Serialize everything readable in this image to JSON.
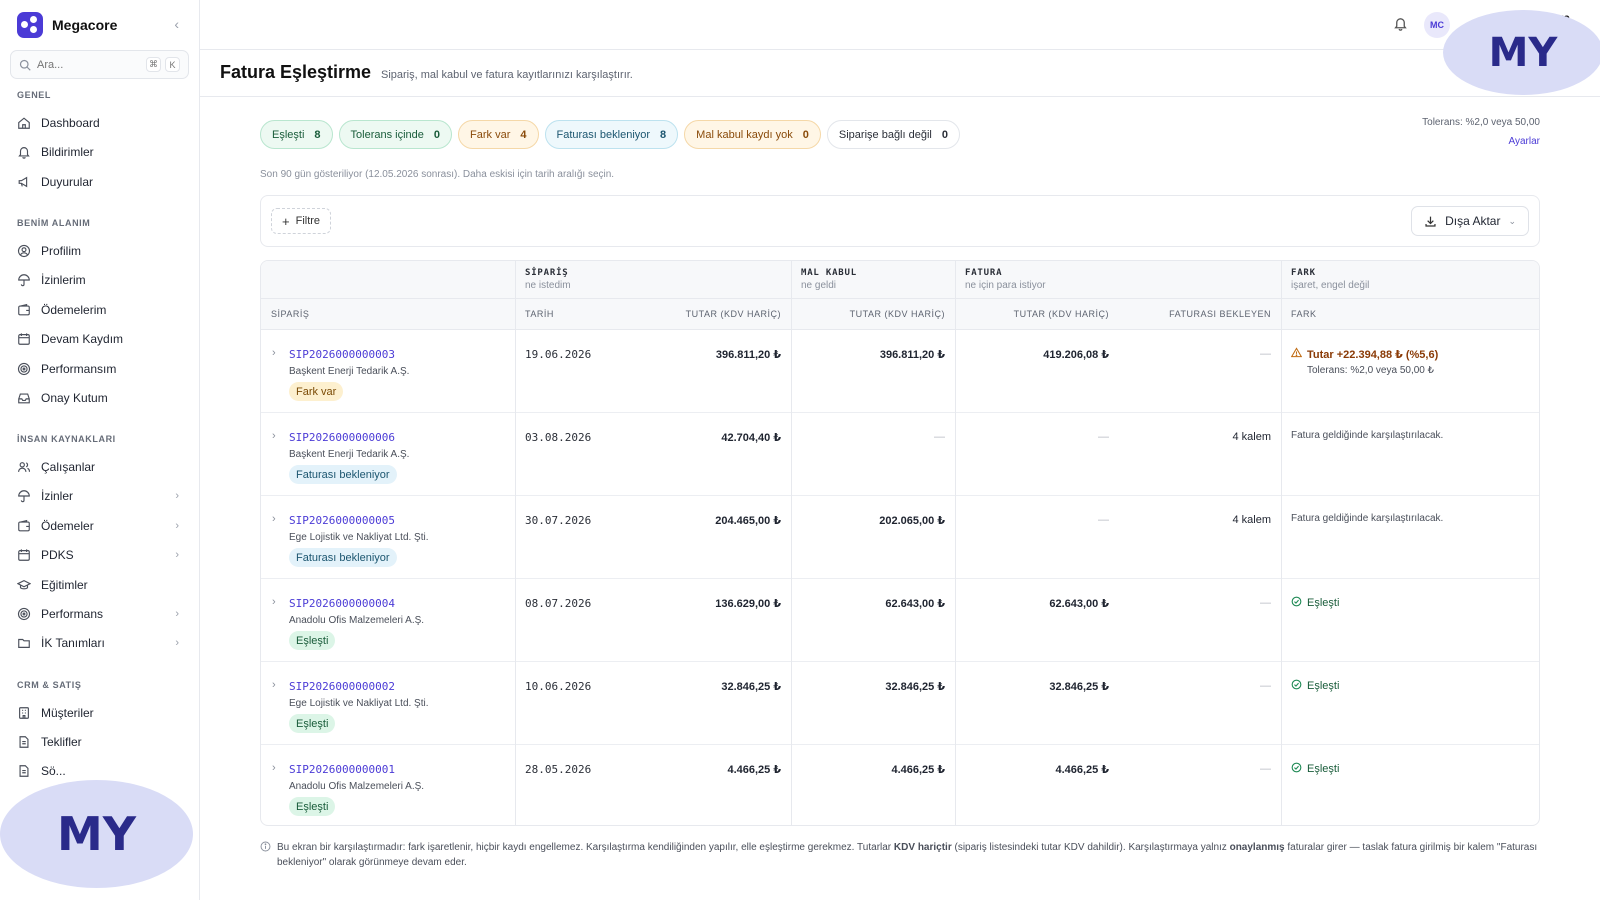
{
  "app": {
    "name": "Megacore"
  },
  "search": {
    "placeholder": "Ara...",
    "kbd1": "⌘",
    "kbd2": "K"
  },
  "sidebar": {
    "sections": [
      {
        "title": "GENEL",
        "items": [
          {
            "label": "Dashboard",
            "icon": "home-icon"
          },
          {
            "label": "Bildirimler",
            "icon": "bell-icon"
          },
          {
            "label": "Duyurular",
            "icon": "megaphone-icon"
          }
        ]
      },
      {
        "title": "BENİM ALANIM",
        "items": [
          {
            "label": "Profilim",
            "icon": "user-circle-icon"
          },
          {
            "label": "İzinlerim",
            "icon": "umbrella-icon"
          },
          {
            "label": "Ödemelerim",
            "icon": "wallet-icon"
          },
          {
            "label": "Devam Kaydım",
            "icon": "calendar-icon"
          },
          {
            "label": "Performansım",
            "icon": "target-icon"
          },
          {
            "label": "Onay Kutum",
            "icon": "inbox-icon"
          }
        ]
      },
      {
        "title": "İNSAN KAYNAKLARI",
        "items": [
          {
            "label": "Çalışanlar",
            "icon": "users-icon"
          },
          {
            "label": "İzinler",
            "icon": "umbrella-icon"
          },
          {
            "label": "Ödemeler",
            "icon": "wallet-icon"
          },
          {
            "label": "PDKS",
            "icon": "calendar-icon"
          },
          {
            "label": "Eğitimler",
            "icon": "graduation-cap-icon"
          },
          {
            "label": "Performans",
            "icon": "target-icon"
          },
          {
            "label": "İK Tanımları",
            "icon": "folder-icon"
          }
        ]
      },
      {
        "title": "CRM & SATIŞ",
        "items": [
          {
            "label": "Müşteriler",
            "icon": "building-icon"
          },
          {
            "label": "Teklifler",
            "icon": "document-icon"
          },
          {
            "label": "Sö...",
            "icon": "document-icon"
          }
        ]
      }
    ]
  },
  "topbar": {
    "avatar_initials": "MC",
    "username": "M... ...ya"
  },
  "page": {
    "title": "Fatura Eşleştirme",
    "subtitle": "Sipariş, mal kabul ve fatura kayıtlarınızı karşılaştırır."
  },
  "watermark": "MY",
  "filters": [
    {
      "label": "Eşleşti",
      "count": "8",
      "tone": "green"
    },
    {
      "label": "Tolerans içinde",
      "count": "0",
      "tone": "green"
    },
    {
      "label": "Fark var",
      "count": "4",
      "tone": "orange"
    },
    {
      "label": "Faturası bekleniyor",
      "count": "8",
      "tone": "blue"
    },
    {
      "label": "Mal kabul kaydı yok",
      "count": "0",
      "tone": "orange"
    },
    {
      "label": "Siparişe bağlı değil",
      "count": "0",
      "tone": "gray"
    }
  ],
  "tolerance": {
    "text": "Tolerans: %2,0 veya 50,00",
    "link": "Ayarlar"
  },
  "range_note": "Son 90 gün gösteriliyor (12.05.2026 sonrası). Daha eskisi için tarih aralığı seçin.",
  "toolbar": {
    "filter_label": "Filtre",
    "export_label": "Dışa Aktar"
  },
  "table": {
    "groups": {
      "siparis": {
        "title": "SİPARİŞ",
        "sub": "ne istedim"
      },
      "malkabul": {
        "title": "MAL KABUL",
        "sub": "ne geldi"
      },
      "fatura": {
        "title": "FATURA",
        "sub": "ne için para istiyor"
      },
      "fark": {
        "title": "FARK",
        "sub": "işaret, engel değil"
      }
    },
    "columns": {
      "siparis": "SİPARİŞ",
      "tarih": "TARİH",
      "siparis_tutar": "TUTAR (KDV HARİÇ)",
      "malkabul_tutar": "TUTAR (KDV HARİÇ)",
      "fatura_tutar": "TUTAR (KDV HARİÇ)",
      "faturasi_bekleyen": "FATURASI BEKLEYEN",
      "fark": "FARK"
    },
    "rows": [
      {
        "id": "SIP2026000000003",
        "supplier": "Başkent Enerji Tedarik A.Ş.",
        "status": "Fark var",
        "status_tone": "fark",
        "date": "19.06.2026",
        "order_amount": "396.811,20 ₺",
        "receipt_amount": "396.811,20 ₺",
        "invoice_amount": "419.206,08 ₺",
        "pending": "—",
        "diff_type": "warn",
        "diff_text": "Tutar +22.394,88 ₺ (%5,6)",
        "diff_sub": "Tolerans: %2,0 veya 50,00 ₺"
      },
      {
        "id": "SIP2026000000006",
        "supplier": "Başkent Enerji Tedarik A.Ş.",
        "status": "Faturası bekleniyor",
        "status_tone": "bekl",
        "date": "03.08.2026",
        "order_amount": "42.704,40 ₺",
        "receipt_amount": "—",
        "invoice_amount": "—",
        "pending": "4 kalem",
        "diff_type": "note",
        "diff_text": "Fatura geldiğinde karşılaştırılacak.",
        "diff_sub": ""
      },
      {
        "id": "SIP2026000000005",
        "supplier": "Ege Lojistik ve Nakliyat Ltd. Şti.",
        "status": "Faturası bekleniyor",
        "status_tone": "bekl",
        "date": "30.07.2026",
        "order_amount": "204.465,00 ₺",
        "receipt_amount": "202.065,00 ₺",
        "invoice_amount": "—",
        "pending": "4 kalem",
        "diff_type": "note",
        "diff_text": "Fatura geldiğinde karşılaştırılacak.",
        "diff_sub": ""
      },
      {
        "id": "SIP2026000000004",
        "supplier": "Anadolu Ofis Malzemeleri A.Ş.",
        "status": "Eşleşti",
        "status_tone": "esl",
        "date": "08.07.2026",
        "order_amount": "136.629,00 ₺",
        "receipt_amount": "62.643,00 ₺",
        "invoice_amount": "62.643,00 ₺",
        "pending": "—",
        "diff_type": "ok",
        "diff_text": "Eşleşti",
        "diff_sub": ""
      },
      {
        "id": "SIP2026000000002",
        "supplier": "Ege Lojistik ve Nakliyat Ltd. Şti.",
        "status": "Eşleşti",
        "status_tone": "esl",
        "date": "10.06.2026",
        "order_amount": "32.846,25 ₺",
        "receipt_amount": "32.846,25 ₺",
        "invoice_amount": "32.846,25 ₺",
        "pending": "—",
        "diff_type": "ok",
        "diff_text": "Eşleşti",
        "diff_sub": ""
      },
      {
        "id": "SIP2026000000001",
        "supplier": "Anadolu Ofis Malzemeleri A.Ş.",
        "status": "Eşleşti",
        "status_tone": "esl",
        "date": "28.05.2026",
        "order_amount": "4.466,25 ₺",
        "receipt_amount": "4.466,25 ₺",
        "invoice_amount": "4.466,25 ₺",
        "pending": "—",
        "diff_type": "ok",
        "diff_text": "Eşleşti",
        "diff_sub": ""
      }
    ]
  },
  "footer": {
    "part1": "Bu ekran bir karşılaştırmadır: fark işaretlenir, hiçbir kaydı engellemez. Karşılaştırma kendiliğinden yapılır, elle eşleştirme gerekmez. Tutarlar ",
    "bold1": "KDV hariçtir",
    "part2": " (sipariş listesindeki tutar KDV dahildir). Karşılaştırmaya yalnız ",
    "bold2": "onaylanmış",
    "part3": " faturalar girer — taslak fatura girilmiş bir kalem \"Faturası bekleniyor\" olarak görünmeye devam eder."
  },
  "colors": {
    "accent": "#4b3bd6",
    "ok": "#195c3a",
    "warn": "#8a3a06"
  }
}
